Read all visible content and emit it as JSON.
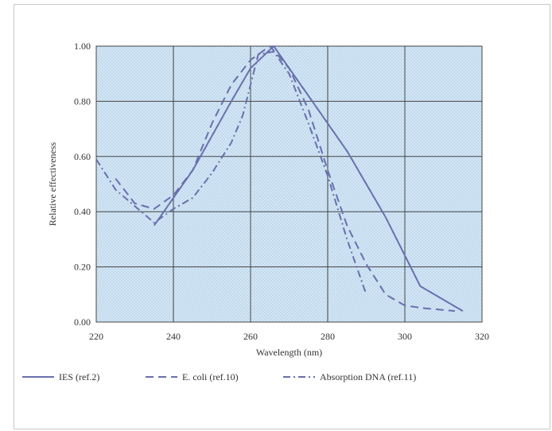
{
  "chart_data": {
    "type": "line",
    "xlabel": "Wavelength (nm)",
    "ylabel": "Relative effectiveness",
    "xlim": [
      220,
      320
    ],
    "ylim": [
      0,
      1
    ],
    "x_ticks": [
      "220",
      "240",
      "260",
      "280",
      "300",
      "320"
    ],
    "y_ticks": [
      "0.00",
      "0.20",
      "0.40",
      "0.60",
      "0.80",
      "1.00"
    ],
    "grid": true,
    "legend_position": "bottom",
    "plot_background": "#cfe3f3",
    "grid_color": "#444444",
    "series": [
      {
        "name": "IES (ref.2)",
        "style": "solid",
        "color": "#6870ad",
        "points": [
          [
            235,
            0.35
          ],
          [
            245,
            0.55
          ],
          [
            255,
            0.8
          ],
          [
            260,
            0.92
          ],
          [
            266,
            1.0
          ],
          [
            275,
            0.82
          ],
          [
            285,
            0.62
          ],
          [
            295,
            0.38
          ],
          [
            304,
            0.13
          ],
          [
            315,
            0.04
          ]
        ]
      },
      {
        "name": "E. coli (ref.10)",
        "style": "dashed",
        "color": "#6870ad",
        "points": [
          [
            225,
            0.52
          ],
          [
            230,
            0.43
          ],
          [
            235,
            0.41
          ],
          [
            240,
            0.46
          ],
          [
            245,
            0.55
          ],
          [
            250,
            0.72
          ],
          [
            255,
            0.86
          ],
          [
            260,
            0.95
          ],
          [
            265,
            1.0
          ],
          [
            270,
            0.92
          ],
          [
            275,
            0.77
          ],
          [
            280,
            0.55
          ],
          [
            285,
            0.35
          ],
          [
            290,
            0.21
          ],
          [
            295,
            0.1
          ],
          [
            300,
            0.06
          ],
          [
            305,
            0.05
          ],
          [
            313,
            0.04
          ]
        ]
      },
      {
        "name": "Absorption DNA (ref.11)",
        "style": "dashdot",
        "color": "#6870ad",
        "points": [
          [
            220,
            0.59
          ],
          [
            225,
            0.48
          ],
          [
            230,
            0.42
          ],
          [
            235,
            0.36
          ],
          [
            240,
            0.41
          ],
          [
            245,
            0.45
          ],
          [
            250,
            0.54
          ],
          [
            255,
            0.65
          ],
          [
            258,
            0.75
          ],
          [
            262,
            0.97
          ],
          [
            266,
            0.98
          ],
          [
            270,
            0.9
          ],
          [
            275,
            0.72
          ],
          [
            280,
            0.53
          ],
          [
            285,
            0.3
          ],
          [
            290,
            0.1
          ]
        ]
      }
    ]
  }
}
